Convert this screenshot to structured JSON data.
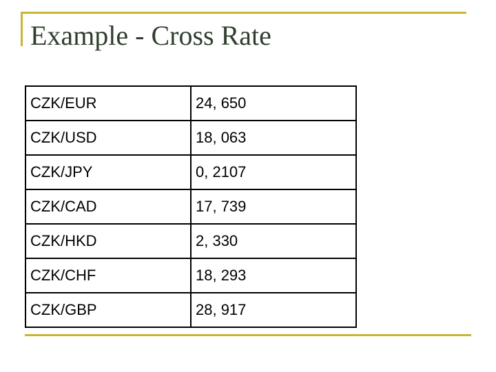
{
  "title": "Example - Cross Rate",
  "rates": [
    {
      "pair": "CZK/EUR",
      "rate": "24, 650"
    },
    {
      "pair": "CZK/USD",
      "rate": "18, 063"
    },
    {
      "pair": "CZK/JPY",
      "rate": "0, 2107"
    },
    {
      "pair": "CZK/CAD",
      "rate": "17, 739"
    },
    {
      "pair": "CZK/HKD",
      "rate": "2, 330"
    },
    {
      "pair": "CZK/CHF",
      "rate": "18, 293"
    },
    {
      "pair": "CZK/GBP",
      "rate": "28, 917"
    }
  ],
  "colors": {
    "accent": "#c9b531",
    "title": "#2f3f2f"
  }
}
